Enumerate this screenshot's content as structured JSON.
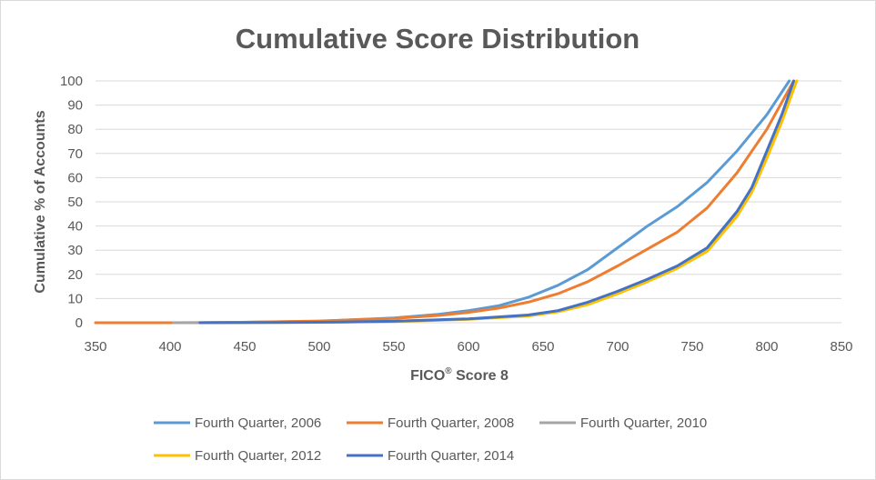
{
  "chart_data": {
    "type": "line",
    "title": "Cumulative Score Distribution",
    "xlabel": "FICO",
    "xlabel_superscript": "®",
    "xlabel_suffix": " Score 8",
    "ylabel": "Cumulative % of Accounts",
    "xlim": [
      350,
      850
    ],
    "ylim": [
      0,
      100
    ],
    "x_ticks": [
      350,
      400,
      450,
      500,
      550,
      600,
      650,
      700,
      750,
      800,
      850
    ],
    "y_ticks": [
      0,
      10,
      20,
      30,
      40,
      50,
      60,
      70,
      80,
      90,
      100
    ],
    "grid": "horizontal",
    "legend_position": "bottom",
    "series": [
      {
        "name": "Fourth Quarter, 2006",
        "color": "#5B9BD5",
        "x": [
          420,
          500,
          550,
          580,
          600,
          620,
          640,
          660,
          680,
          700,
          720,
          740,
          760,
          780,
          800,
          815
        ],
        "y": [
          0,
          0.6,
          2.0,
          3.5,
          5.0,
          7.0,
          10.5,
          15.5,
          22.0,
          31.0,
          40.0,
          48.0,
          58.0,
          71.0,
          86.0,
          100
        ]
      },
      {
        "name": "Fourth Quarter, 2008",
        "color": "#ED7D31",
        "x": [
          350,
          400,
          450,
          500,
          550,
          580,
          600,
          620,
          640,
          660,
          680,
          700,
          720,
          740,
          760,
          780,
          800,
          818
        ],
        "y": [
          0,
          0,
          0.2,
          0.7,
          1.8,
          3.0,
          4.3,
          6.0,
          8.5,
          12.0,
          17.0,
          23.5,
          30.5,
          37.5,
          47.5,
          62.0,
          80.0,
          100
        ]
      },
      {
        "name": "Fourth Quarter, 2010",
        "color": "#A5A5A5",
        "x": [
          402,
          420,
          500,
          550,
          600,
          640,
          660,
          680,
          700,
          720,
          740,
          760,
          780,
          790,
          800,
          810,
          820
        ],
        "y": [
          0,
          0,
          0.2,
          0.6,
          1.5,
          3.0,
          4.8,
          8.0,
          12.5,
          17.5,
          23.0,
          30.5,
          45.0,
          55.0,
          69.0,
          84.0,
          100
        ]
      },
      {
        "name": "Fourth Quarter, 2012",
        "color": "#FFC000",
        "x": [
          420,
          500,
          550,
          600,
          640,
          660,
          680,
          700,
          720,
          740,
          760,
          780,
          790,
          800,
          810,
          820
        ],
        "y": [
          0,
          0.2,
          0.5,
          1.4,
          2.8,
          4.5,
          7.5,
          12.0,
          17.0,
          22.5,
          29.5,
          44.0,
          54.0,
          68.0,
          83.0,
          100
        ]
      },
      {
        "name": "Fourth Quarter, 2014",
        "color": "#4472C4",
        "x": [
          420,
          500,
          550,
          600,
          640,
          660,
          680,
          700,
          720,
          740,
          760,
          780,
          790,
          800,
          810,
          818
        ],
        "y": [
          0,
          0.2,
          0.6,
          1.6,
          3.2,
          5.0,
          8.5,
          13.0,
          18.0,
          23.5,
          31.0,
          46.0,
          56.0,
          71.0,
          86.0,
          100
        ]
      }
    ]
  }
}
